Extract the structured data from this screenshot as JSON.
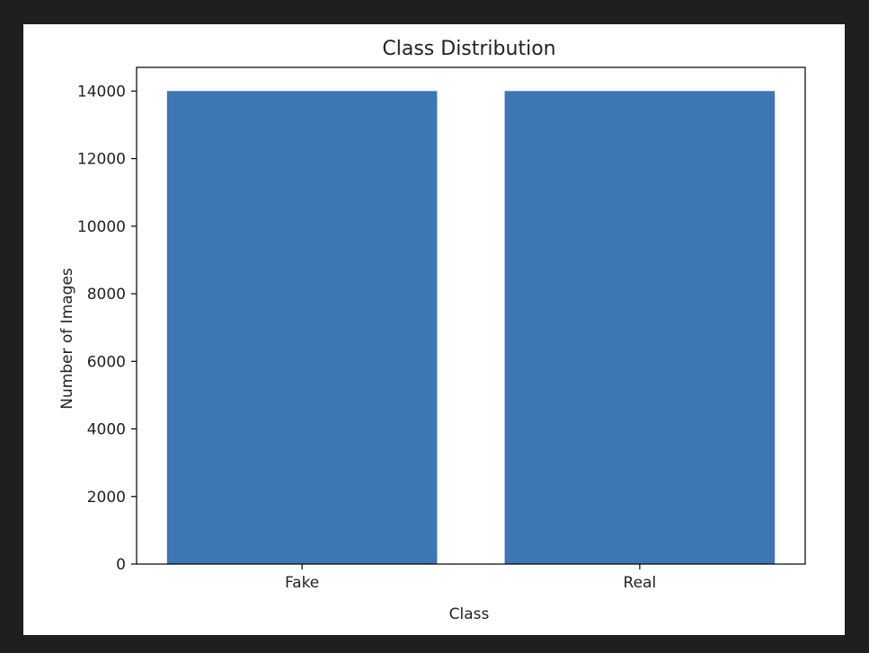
{
  "colors": {
    "background": "#1f1f1f",
    "figure": "#ffffff",
    "bar": "#3d76b4",
    "axis": "#000000"
  },
  "chart_data": {
    "type": "bar",
    "title": "Class Distribution",
    "xlabel": "Class",
    "ylabel": "Number of Images",
    "categories": [
      "Fake",
      "Real"
    ],
    "values": [
      14000,
      14000
    ],
    "ylim": [
      0,
      14700
    ],
    "yticks": [
      0,
      2000,
      4000,
      6000,
      8000,
      10000,
      12000,
      14000
    ],
    "grid": false,
    "legend": "none"
  }
}
